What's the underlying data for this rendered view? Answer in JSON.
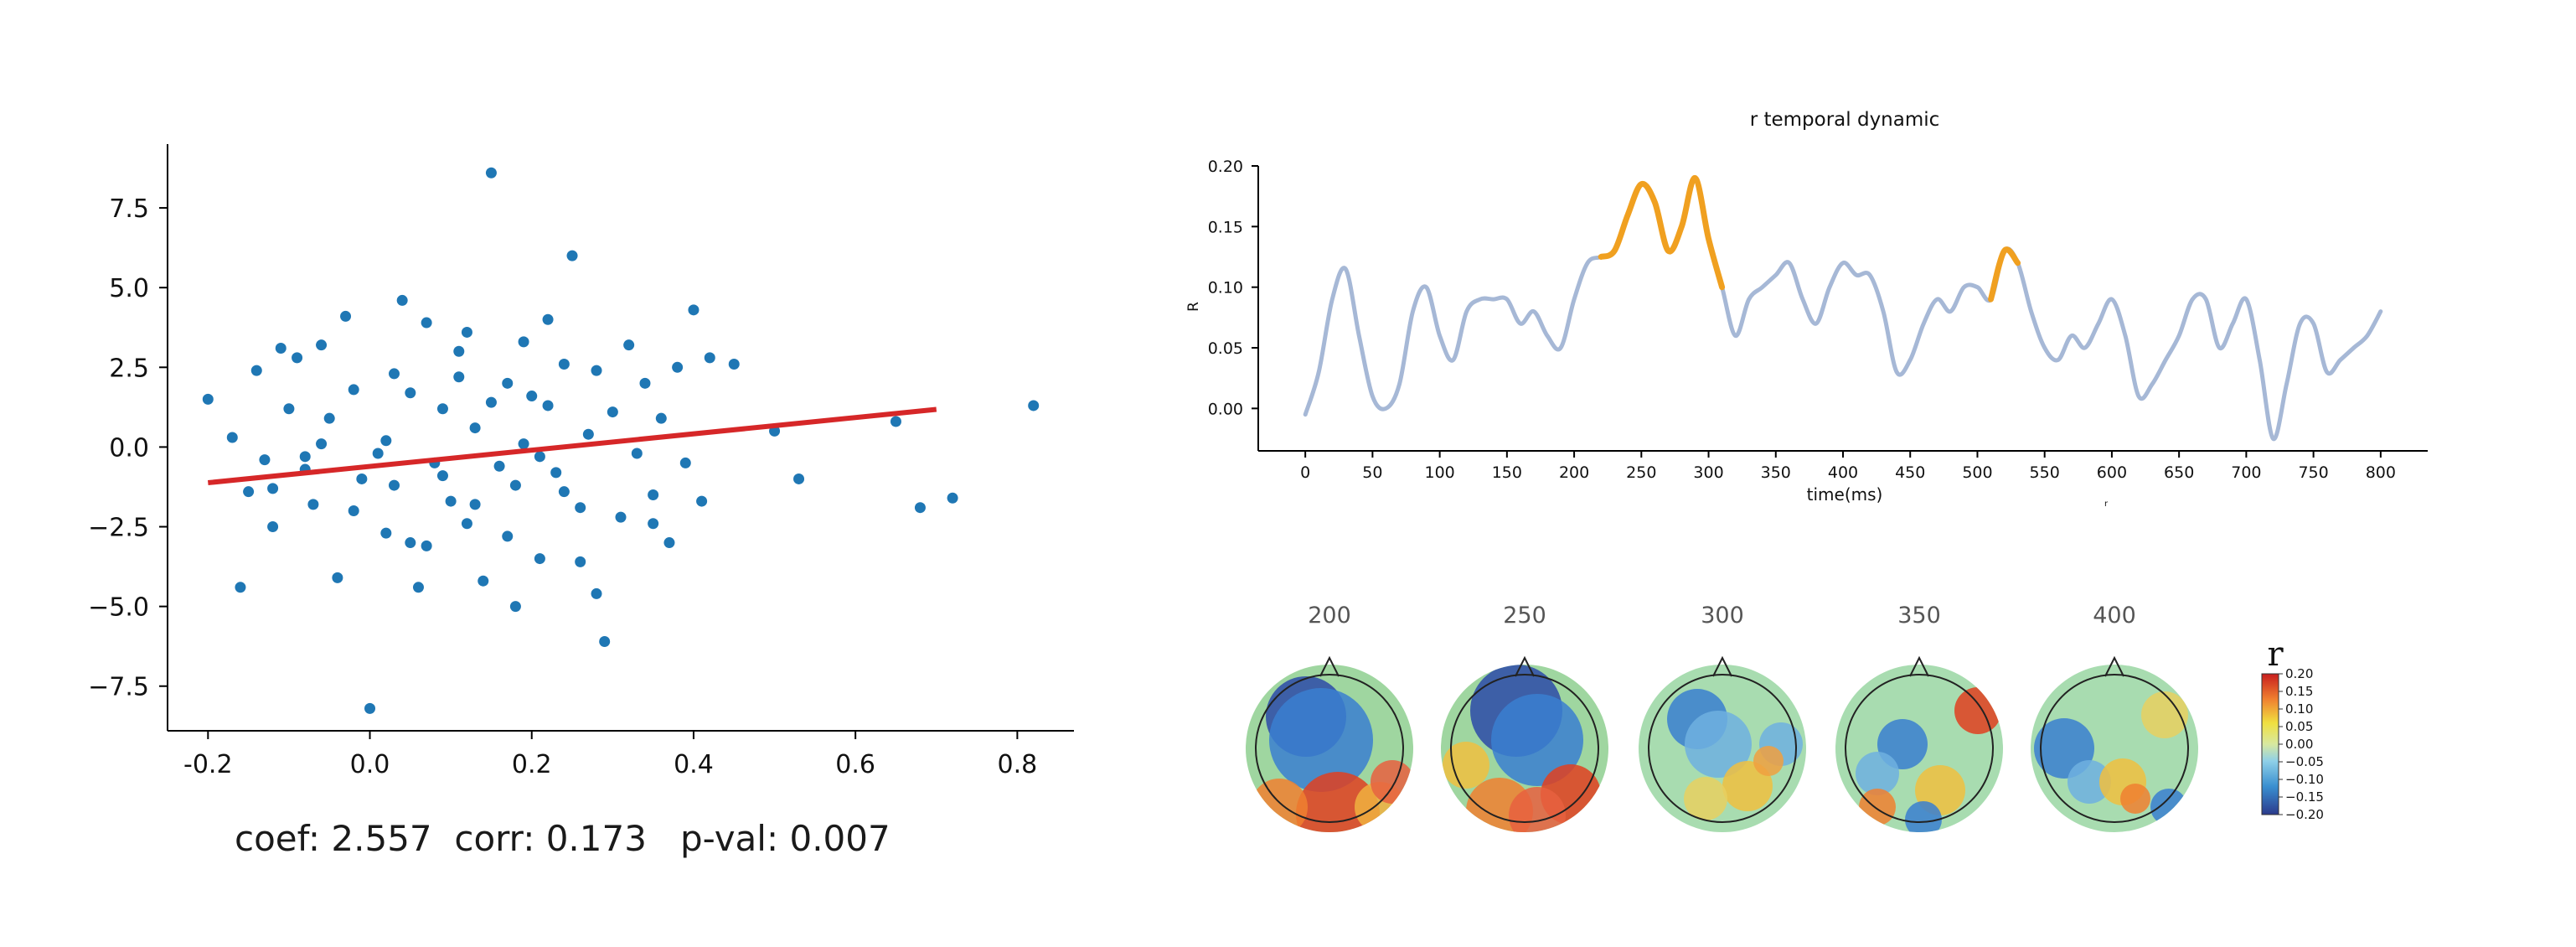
{
  "chart_data": [
    {
      "type": "scatter",
      "title": "",
      "xlabel": "",
      "ylabel": "",
      "xlim": [
        -0.25,
        0.87
      ],
      "ylim": [
        -8.9,
        9.5
      ],
      "x_ticks": [
        -0.2,
        0.0,
        0.2,
        0.4,
        0.6,
        0.8
      ],
      "x_tick_labels": [
        "-0.2",
        "0.0",
        "0.2",
        "0.4",
        "0.6",
        "0.8"
      ],
      "y_ticks": [
        7.5,
        5.0,
        2.5,
        0.0,
        -2.5,
        -5.0,
        -7.5
      ],
      "y_tick_labels": [
        "7.5",
        "5.0",
        "2.5",
        "0.0",
        "−2.5",
        "−5.0",
        "−7.5"
      ],
      "points": [
        [
          -0.2,
          1.5
        ],
        [
          -0.17,
          0.3
        ],
        [
          -0.16,
          -4.4
        ],
        [
          -0.15,
          -1.4
        ],
        [
          -0.14,
          2.4
        ],
        [
          -0.13,
          -0.4
        ],
        [
          -0.12,
          -2.5
        ],
        [
          -0.11,
          3.1
        ],
        [
          -0.1,
          1.2
        ],
        [
          -0.09,
          2.8
        ],
        [
          -0.08,
          -0.7
        ],
        [
          -0.07,
          -1.8
        ],
        [
          -0.06,
          3.2
        ],
        [
          -0.05,
          0.9
        ],
        [
          -0.04,
          -4.1
        ],
        [
          -0.03,
          4.1
        ],
        [
          -0.02,
          1.8
        ],
        [
          -0.01,
          -1.0
        ],
        [
          0.0,
          -8.2
        ],
        [
          0.01,
          -0.2
        ],
        [
          0.02,
          -2.7
        ],
        [
          0.03,
          2.3
        ],
        [
          0.04,
          4.6
        ],
        [
          0.05,
          -3.0
        ],
        [
          0.06,
          -4.4
        ],
        [
          0.07,
          3.9
        ],
        [
          0.08,
          -0.5
        ],
        [
          0.09,
          1.2
        ],
        [
          0.1,
          -1.7
        ],
        [
          0.11,
          3.0
        ],
        [
          0.12,
          -2.4
        ],
        [
          0.13,
          0.6
        ],
        [
          0.14,
          -4.2
        ],
        [
          0.15,
          8.6
        ],
        [
          0.16,
          -0.6
        ],
        [
          0.17,
          2.0
        ],
        [
          0.18,
          -1.2
        ],
        [
          0.19,
          3.3
        ],
        [
          0.2,
          1.6
        ],
        [
          0.21,
          -3.5
        ],
        [
          0.22,
          4.0
        ],
        [
          0.23,
          -0.8
        ],
        [
          0.24,
          2.6
        ],
        [
          0.25,
          6.0
        ],
        [
          0.26,
          -1.9
        ],
        [
          0.27,
          0.4
        ],
        [
          0.28,
          -4.6
        ],
        [
          0.29,
          -6.1
        ],
        [
          0.3,
          1.1
        ],
        [
          0.31,
          -2.2
        ],
        [
          0.32,
          3.2
        ],
        [
          0.33,
          -0.2
        ],
        [
          0.34,
          2.0
        ],
        [
          0.35,
          -1.5
        ],
        [
          0.36,
          0.9
        ],
        [
          0.37,
          -3.0
        ],
        [
          0.38,
          2.5
        ],
        [
          0.39,
          -0.5
        ],
        [
          0.4,
          4.3
        ],
        [
          0.41,
          -1.7
        ],
        [
          0.42,
          2.8
        ],
        [
          0.45,
          2.6
        ],
        [
          0.5,
          0.5
        ],
        [
          0.53,
          -1.0
        ],
        [
          0.65,
          0.8
        ],
        [
          0.68,
          -1.9
        ],
        [
          0.72,
          -1.6
        ],
        [
          0.82,
          1.3
        ],
        [
          -0.12,
          -1.3
        ],
        [
          -0.06,
          0.1
        ],
        [
          0.03,
          -1.2
        ],
        [
          0.09,
          -0.9
        ],
        [
          0.13,
          -1.8
        ],
        [
          0.17,
          -2.8
        ],
        [
          0.21,
          -0.3
        ],
        [
          0.24,
          -1.4
        ],
        [
          0.07,
          -3.1
        ],
        [
          0.11,
          2.2
        ],
        [
          0.19,
          0.1
        ],
        [
          0.26,
          -3.6
        ],
        [
          0.02,
          0.2
        ],
        [
          -0.02,
          -2.0
        ],
        [
          0.15,
          1.4
        ],
        [
          0.05,
          1.7
        ],
        [
          0.18,
          -5.0
        ],
        [
          -0.08,
          -0.3
        ],
        [
          0.12,
          3.6
        ],
        [
          0.22,
          1.3
        ],
        [
          0.28,
          2.4
        ],
        [
          0.35,
          -2.4
        ]
      ],
      "fit_line": {
        "x": [
          -0.2,
          0.7
        ],
        "y": [
          -1.12,
          1.18
        ]
      },
      "stats": {
        "coef": "coef: 2.557",
        "corr": "corr: 0.173",
        "pval": "p-val: 0.007"
      },
      "colors": {
        "points": "#1f77b4",
        "fit": "#d62728"
      }
    },
    {
      "type": "line",
      "title": "r temporal dynamic",
      "xlabel": "time(ms)",
      "ylabel": "R",
      "sublabel": "r",
      "xlim": [
        -35,
        835
      ],
      "ylim": [
        -0.035,
        0.2
      ],
      "x_ticks": [
        0,
        50,
        100,
        150,
        200,
        250,
        300,
        350,
        400,
        450,
        500,
        550,
        600,
        650,
        700,
        750,
        800
      ],
      "y_ticks": [
        0.0,
        0.05,
        0.1,
        0.15,
        0.2
      ],
      "y_tick_labels": [
        "0.00",
        "0.05",
        "0.10",
        "0.15",
        "0.20"
      ],
      "series": [
        {
          "x": [
            0,
            10,
            20,
            30,
            40,
            50,
            60,
            70,
            80,
            90,
            100,
            110,
            120,
            130,
            140,
            150,
            160,
            170,
            180,
            190,
            200,
            210,
            220,
            230,
            240,
            250,
            260,
            270,
            280,
            290,
            300,
            310,
            320,
            330,
            340,
            350,
            360,
            370,
            380,
            390,
            400,
            410,
            420,
            430,
            440,
            450,
            460,
            470,
            480,
            490,
            500,
            510,
            520,
            530,
            540,
            550,
            560,
            570,
            580,
            590,
            600,
            610,
            620,
            630,
            640,
            650,
            660,
            670,
            680,
            690,
            700,
            710,
            720,
            730,
            740,
            750,
            760,
            770,
            780,
            790,
            800
          ],
          "y": [
            -0.005,
            0.03,
            0.09,
            0.115,
            0.06,
            0.01,
            0.0,
            0.02,
            0.08,
            0.1,
            0.06,
            0.04,
            0.08,
            0.09,
            0.09,
            0.09,
            0.07,
            0.08,
            0.06,
            0.05,
            0.09,
            0.12,
            0.125,
            0.13,
            0.16,
            0.185,
            0.17,
            0.13,
            0.15,
            0.19,
            0.14,
            0.1,
            0.06,
            0.09,
            0.1,
            0.11,
            0.12,
            0.09,
            0.07,
            0.1,
            0.12,
            0.11,
            0.11,
            0.08,
            0.03,
            0.04,
            0.07,
            0.09,
            0.08,
            0.1,
            0.1,
            0.09,
            0.13,
            0.12,
            0.08,
            0.05,
            0.04,
            0.06,
            0.05,
            0.07,
            0.09,
            0.06,
            0.01,
            0.02,
            0.04,
            0.06,
            0.09,
            0.09,
            0.05,
            0.07,
            0.09,
            0.04,
            -0.025,
            0.02,
            0.07,
            0.07,
            0.03,
            0.04,
            0.05,
            0.06,
            0.08
          ]
        }
      ],
      "significant_ranges": [
        [
          220,
          305
        ],
        [
          515,
          525
        ]
      ],
      "colors": {
        "line": "#a6b8d6",
        "significant": "#f0a020"
      }
    },
    {
      "type": "heatmap",
      "topo_labels": [
        "200",
        "250",
        "300",
        "350",
        "400"
      ],
      "colorbar": {
        "title": "r",
        "ticks": [
          0.2,
          0.15,
          0.1,
          0.05,
          0.0,
          -0.05,
          -0.1,
          -0.15,
          -0.2
        ],
        "tick_labels": [
          "0.20",
          "0.15",
          "0.10",
          "0.05",
          "0.00",
          "−0.05",
          "−0.10",
          "−0.15",
          "−0.20"
        ],
        "range": [
          -0.2,
          0.2
        ]
      }
    }
  ]
}
